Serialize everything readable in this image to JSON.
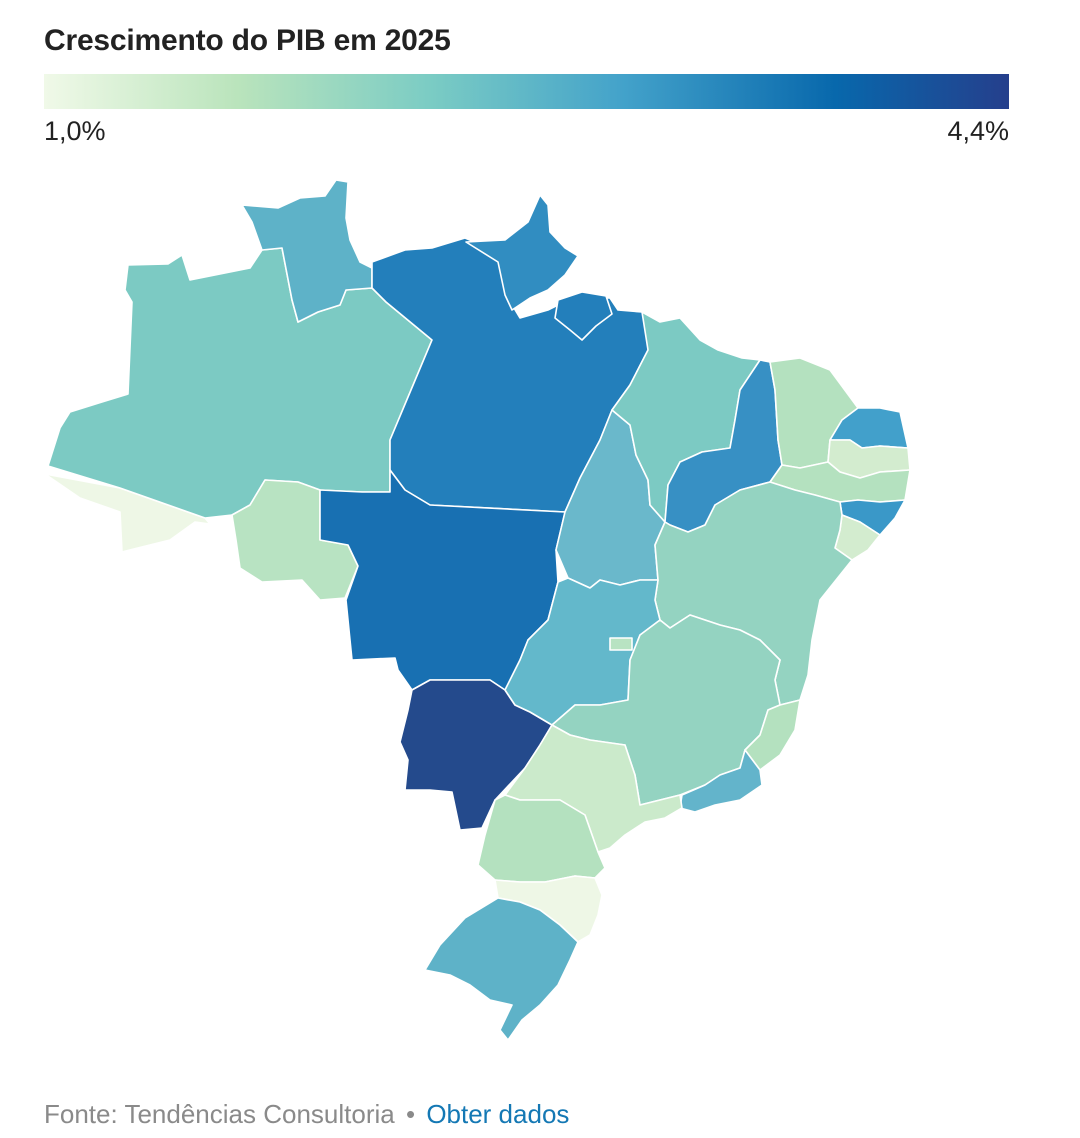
{
  "title": "Crescimento do PIB em 2025",
  "legend": {
    "min_label": "1,0%",
    "max_label": "4,4%",
    "colors": [
      "#f0f9e8",
      "#bae4bc",
      "#7bccc4",
      "#43a2ca",
      "#0868ac",
      "#253f8c"
    ]
  },
  "footer": {
    "source": "Fonte: Tendências Consultoria",
    "separator": "•",
    "link": "Obter dados"
  },
  "map": {
    "states": [
      {
        "id": "AC",
        "color": "#eef7e6"
      },
      {
        "id": "AM",
        "color": "#7ccac3"
      },
      {
        "id": "RR",
        "color": "#5eb2c8"
      },
      {
        "id": "RO",
        "color": "#b8e3c2"
      },
      {
        "id": "PA",
        "color": "#237fbb"
      },
      {
        "id": "AP",
        "color": "#318dc1"
      },
      {
        "id": "MT",
        "color": "#1870b2"
      },
      {
        "id": "MS",
        "color": "#244a8c"
      },
      {
        "id": "TO",
        "color": "#6ab8cb"
      },
      {
        "id": "MA",
        "color": "#7ccac3"
      },
      {
        "id": "PI",
        "color": "#3790c4"
      },
      {
        "id": "CE",
        "color": "#b4e1bf"
      },
      {
        "id": "RN",
        "color": "#42a0cb"
      },
      {
        "id": "PB",
        "color": "#d3eccf"
      },
      {
        "id": "PE",
        "color": "#b4e1bf"
      },
      {
        "id": "AL",
        "color": "#3a98c8"
      },
      {
        "id": "SE",
        "color": "#d3eccf"
      },
      {
        "id": "BA",
        "color": "#94d3c1"
      },
      {
        "id": "GO",
        "color": "#63b8cb"
      },
      {
        "id": "DF",
        "color": "#b8e3c2"
      },
      {
        "id": "MG",
        "color": "#94d3c1"
      },
      {
        "id": "ES",
        "color": "#b4e1bf"
      },
      {
        "id": "RJ",
        "color": "#63b4cb"
      },
      {
        "id": "SP",
        "color": "#cbeacb"
      },
      {
        "id": "PR",
        "color": "#b4e1bf"
      },
      {
        "id": "SC",
        "color": "#eef7e6"
      },
      {
        "id": "RS",
        "color": "#5eb2c8"
      }
    ]
  }
}
